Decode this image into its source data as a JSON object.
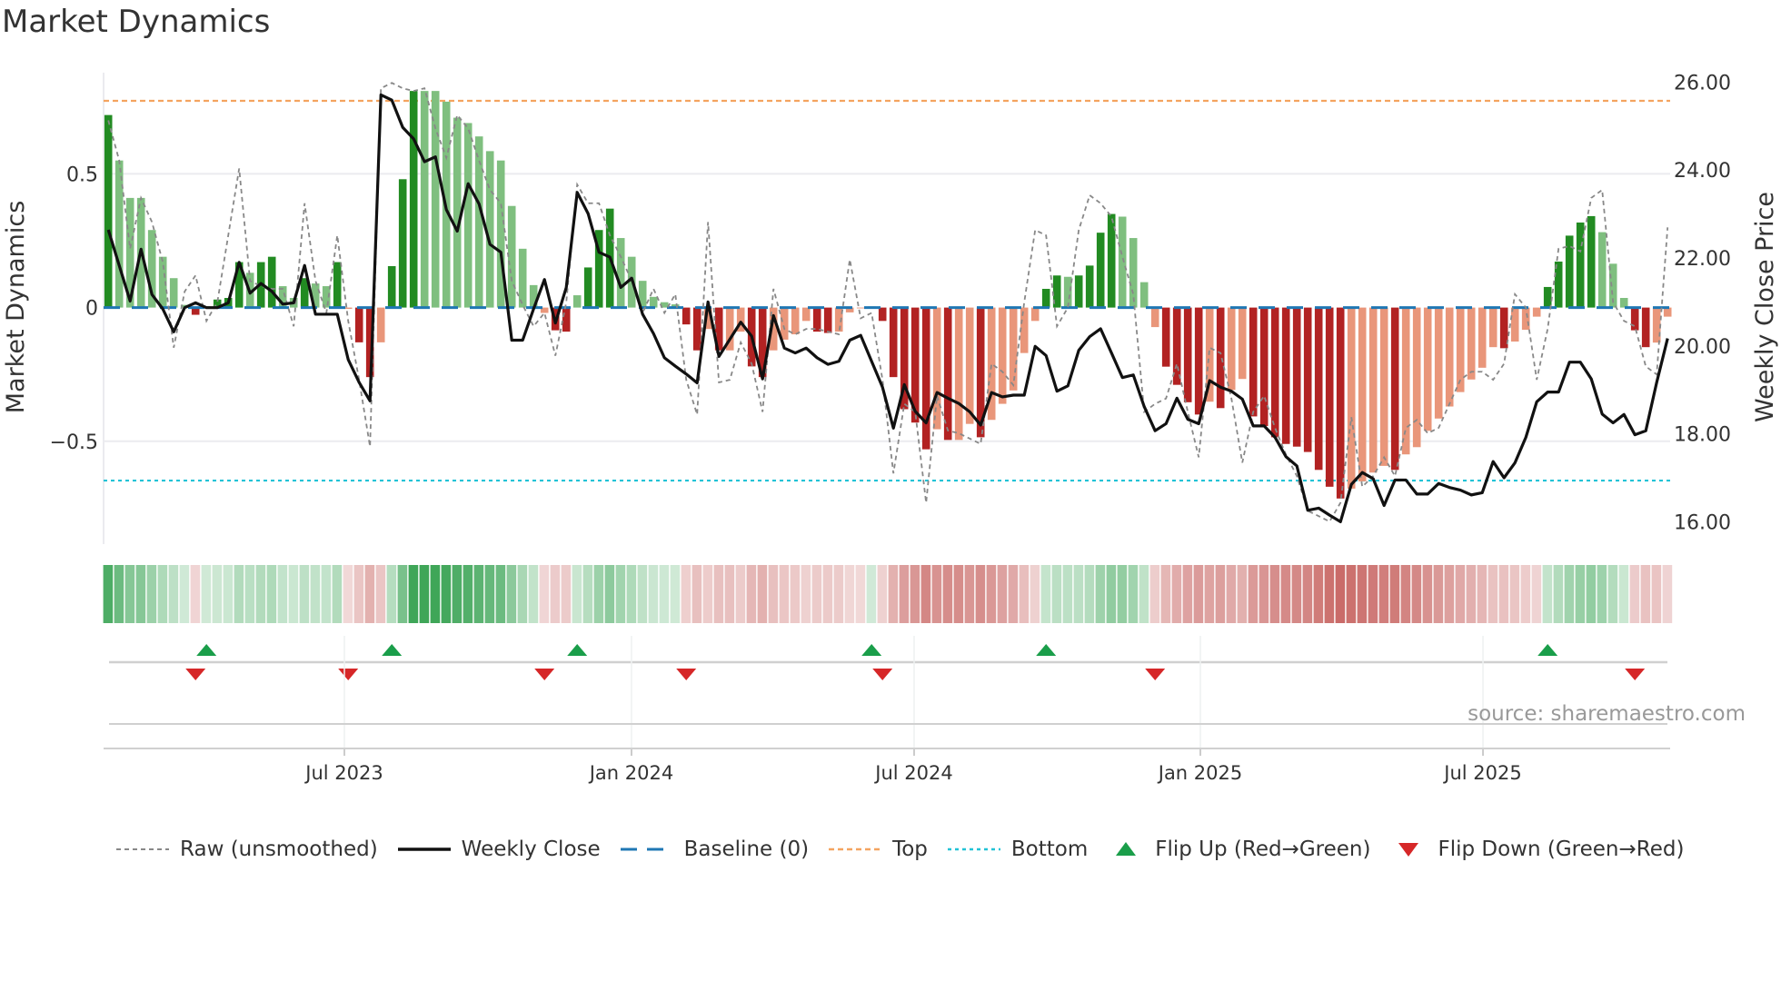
{
  "title": "Market Dynamics",
  "source": "source: sharemaestro.com",
  "chart_data": {
    "type": "bar",
    "title": "Market Dynamics",
    "ylabel": "Market Dynamics",
    "y2label": "Weekly Close Price",
    "ylim": [
      -0.885,
      0.878
    ],
    "y2lim": [
      15.49,
      26.22
    ],
    "yticks": [
      {
        "v": 0.5,
        "label": "0.5"
      },
      {
        "v": 0,
        "label": "0"
      },
      {
        "v": -0.5,
        "label": "−0.5"
      }
    ],
    "y2ticks": [
      {
        "v": 26,
        "label": "26.00"
      },
      {
        "v": 24,
        "label": "24.00"
      },
      {
        "v": 22,
        "label": "22.00"
      },
      {
        "v": 20,
        "label": "20.00"
      },
      {
        "v": 18,
        "label": "18.00"
      },
      {
        "v": 16,
        "label": "16.00"
      }
    ],
    "x_unit": "week index",
    "xticks": [
      {
        "v": 21.65,
        "label": "Jul 2023"
      },
      {
        "v": 47.98,
        "label": "Jan 2024"
      },
      {
        "v": 73.9,
        "label": "Jul 2024"
      },
      {
        "v": 100.15,
        "label": "Jan 2025"
      },
      {
        "v": 126.07,
        "label": "Jul 2025"
      }
    ],
    "thresholds": {
      "top": 0.773,
      "bottom": -0.647,
      "baseline": 0
    },
    "momentum": [
      0.72,
      0.55,
      0.41,
      0.41,
      0.29,
      0.19,
      0.11,
      0.01,
      -0.027,
      0.005,
      0.03,
      0.036,
      0.17,
      0.13,
      0.17,
      0.19,
      0.08,
      0.036,
      0.11,
      0.09,
      0.08,
      0.17,
      -0.005,
      -0.13,
      -0.26,
      -0.13,
      0.155,
      0.48,
      0.81,
      0.81,
      0.81,
      0.77,
      0.71,
      0.69,
      0.64,
      0.585,
      0.55,
      0.38,
      0.22,
      0.084,
      -0.02,
      -0.085,
      -0.09,
      0.046,
      0.15,
      0.29,
      0.37,
      0.26,
      0.19,
      0.1,
      0.04,
      0.02,
      0.012,
      -0.063,
      -0.16,
      -0.08,
      -0.16,
      -0.16,
      -0.09,
      -0.22,
      -0.26,
      -0.16,
      -0.12,
      -0.1,
      -0.05,
      -0.09,
      -0.095,
      -0.09,
      -0.018,
      -0.003,
      0.004,
      -0.05,
      -0.26,
      -0.38,
      -0.43,
      -0.53,
      -0.455,
      -0.495,
      -0.495,
      -0.435,
      -0.485,
      -0.42,
      -0.36,
      -0.31,
      -0.17,
      -0.05,
      0.07,
      0.12,
      0.115,
      0.12,
      0.157,
      0.28,
      0.35,
      0.34,
      0.26,
      0.095,
      -0.073,
      -0.221,
      -0.289,
      -0.354,
      -0.4,
      -0.352,
      -0.376,
      -0.308,
      -0.267,
      -0.407,
      -0.443,
      -0.485,
      -0.51,
      -0.52,
      -0.54,
      -0.607,
      -0.67,
      -0.714,
      -0.677,
      -0.65,
      -0.617,
      -0.592,
      -0.607,
      -0.549,
      -0.522,
      -0.461,
      -0.415,
      -0.37,
      -0.316,
      -0.269,
      -0.225,
      -0.148,
      -0.152,
      -0.127,
      -0.083,
      -0.034,
      0.077,
      0.172,
      0.269,
      0.318,
      0.342,
      0.282,
      0.164,
      0.036,
      -0.085,
      -0.148,
      -0.131,
      -0.034
    ],
    "raw": [
      0.7,
      0.55,
      0.22,
      0.41,
      0.32,
      0.17,
      -0.15,
      0.06,
      0.12,
      -0.05,
      0.02,
      0.27,
      0.52,
      0.1,
      0.08,
      0.07,
      0.07,
      -0.07,
      0.39,
      0.1,
      -0.02,
      0.27,
      -0.05,
      -0.27,
      -0.52,
      0.82,
      0.84,
      0.82,
      0.81,
      0.82,
      0.67,
      0.56,
      0.72,
      0.67,
      0.55,
      0.44,
      0.39,
      0.1,
      0.01,
      -0.07,
      -0.02,
      -0.18,
      0.02,
      0.46,
      0.39,
      0.39,
      0.27,
      0.19,
      0.1,
      -0.02,
      0.07,
      -0.02,
      0.05,
      -0.27,
      -0.4,
      0.32,
      -0.28,
      -0.27,
      -0.13,
      -0.21,
      -0.39,
      0.07,
      -0.08,
      -0.1,
      -0.08,
      -0.08,
      -0.09,
      -0.1,
      0.18,
      -0.04,
      -0.02,
      -0.27,
      -0.62,
      -0.36,
      -0.39,
      -0.73,
      -0.33,
      -0.46,
      -0.47,
      -0.49,
      -0.51,
      -0.21,
      -0.24,
      -0.29,
      0.02,
      0.29,
      0.27,
      -0.07,
      0.0,
      0.29,
      0.42,
      0.39,
      0.34,
      0.19,
      0.05,
      -0.39,
      -0.36,
      -0.34,
      -0.21,
      -0.39,
      -0.56,
      -0.15,
      -0.17,
      -0.34,
      -0.58,
      -0.39,
      -0.33,
      -0.45,
      -0.55,
      -0.63,
      -0.76,
      -0.78,
      -0.8,
      -0.73,
      -0.41,
      -0.67,
      -0.63,
      -0.56,
      -0.63,
      -0.45,
      -0.42,
      -0.47,
      -0.45,
      -0.36,
      -0.27,
      -0.24,
      -0.24,
      -0.27,
      -0.21,
      0.05,
      0.0,
      -0.27,
      -0.08,
      0.22,
      0.23,
      0.21,
      0.41,
      0.44,
      0.02,
      -0.05,
      -0.07,
      -0.22,
      -0.25,
      0.3
    ],
    "close": [
      22.64,
      21.83,
      21.02,
      22.2,
      21.17,
      20.84,
      20.32,
      20.87,
      20.98,
      20.87,
      20.87,
      20.98,
      21.9,
      21.2,
      21.42,
      21.24,
      20.95,
      20.98,
      21.83,
      20.72,
      20.72,
      20.72,
      19.69,
      19.17,
      18.75,
      25.71,
      25.59,
      24.97,
      24.71,
      24.19,
      24.3,
      23.1,
      22.61,
      23.69,
      23.23,
      22.31,
      22.13,
      20.13,
      20.13,
      20.84,
      21.51,
      20.52,
      21.33,
      23.49,
      23.01,
      22.13,
      22.02,
      21.33,
      21.54,
      20.72,
      20.28,
      19.73,
      19.54,
      19.36,
      19.16,
      21.0,
      19.76,
      20.15,
      20.54,
      20.22,
      19.25,
      20.69,
      19.95,
      19.84,
      19.95,
      19.73,
      19.58,
      19.65,
      20.13,
      20.24,
      19.65,
      19.06,
      18.13,
      19.12,
      18.51,
      18.25,
      18.94,
      18.81,
      18.69,
      18.5,
      18.2,
      18.94,
      18.84,
      18.88,
      18.88,
      19.99,
      19.78,
      18.97,
      19.09,
      19.9,
      20.21,
      20.39,
      19.84,
      19.28,
      19.34,
      18.62,
      18.07,
      18.23,
      18.81,
      18.33,
      18.23,
      19.21,
      19.06,
      18.97,
      18.79,
      18.18,
      18.18,
      17.92,
      17.48,
      17.27,
      16.26,
      16.31,
      16.15,
      16.0,
      16.85,
      17.12,
      16.98,
      16.37,
      16.95,
      16.95,
      16.63,
      16.63,
      16.87,
      16.78,
      16.72,
      16.61,
      16.66,
      17.37,
      17.0,
      17.34,
      17.92,
      18.73,
      18.95,
      18.95,
      19.63,
      19.63,
      19.25,
      18.45,
      18.25,
      18.44,
      17.98,
      18.07,
      19.17,
      20.17
    ],
    "flip_up": [
      9,
      26,
      43,
      70,
      86,
      132
    ],
    "flip_down": [
      8,
      22,
      40,
      53,
      71,
      96,
      140
    ],
    "legend_position": "bottom",
    "legend": [
      {
        "key": "raw",
        "label": "Raw (unsmoothed)"
      },
      {
        "key": "close",
        "label": "Weekly Close"
      },
      {
        "key": "baseline",
        "label": "Baseline (0)"
      },
      {
        "key": "top",
        "label": "Top"
      },
      {
        "key": "bottom",
        "label": "Bottom"
      },
      {
        "key": "flip_up",
        "label": "Flip Up (Red→Green)"
      },
      {
        "key": "flip_down",
        "label": "Flip Down (Green→Red)"
      }
    ]
  },
  "colors": {
    "green_strong": "#228b22",
    "green_fading": "#7fbf7f",
    "red_strong": "#b22222",
    "red_fading": "#e9967a",
    "strip_green": "#2e9e4a",
    "strip_red": "#c0504d",
    "close": "#111111",
    "raw": "#888888",
    "baseline": "#1f77b4",
    "top": "#f4a460",
    "bottom": "#22c3d6",
    "flip_up": "#1a9e4a",
    "flip_down": "#d62728"
  }
}
